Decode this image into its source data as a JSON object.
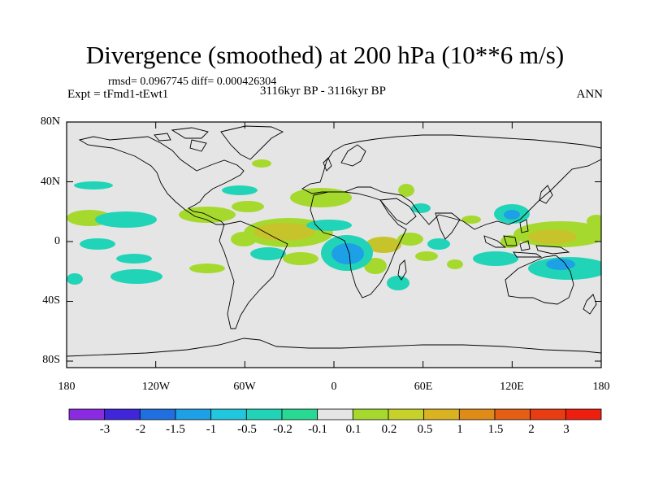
{
  "title": "Divergence (smoothed) at 200 hPa (10**6 m/s)",
  "stats": "rmsd= 0.0967745 diff= 0.000426304",
  "left_label": "Expt = tFmd1-tEwt1",
  "center_label": "3116kyr BP - 3116kyr BP",
  "right_label": "ANN",
  "y_ticks": [
    "80N",
    "40N",
    "0",
    "40S",
    "80S"
  ],
  "x_ticks": [
    "180",
    "120W",
    "60W",
    "0",
    "60E",
    "120E",
    "180"
  ],
  "colorbar": {
    "labels": [
      "-3",
      "-2",
      "-1.5",
      "-1",
      "-0.5",
      "-0.2",
      "-0.1",
      "0.1",
      "0.2",
      "0.5",
      "1",
      "1.5",
      "2",
      "3"
    ],
    "colors": [
      "#8a2be2",
      "#3f26d9",
      "#1f6fe0",
      "#1ea0e6",
      "#21c6df",
      "#21d4b8",
      "#27d992",
      "#e5e5e5",
      "#a6d92d",
      "#c6d22a",
      "#dab222",
      "#df8b18",
      "#e45e14",
      "#ea3c12",
      "#ef1f10"
    ]
  },
  "colors": {
    "background": "#e5e5e5",
    "positive_weak": "#a6d92d",
    "positive_mid": "#c6c42a",
    "negative_weak": "#21d4b8",
    "negative_mid": "#1ea0e6"
  }
}
